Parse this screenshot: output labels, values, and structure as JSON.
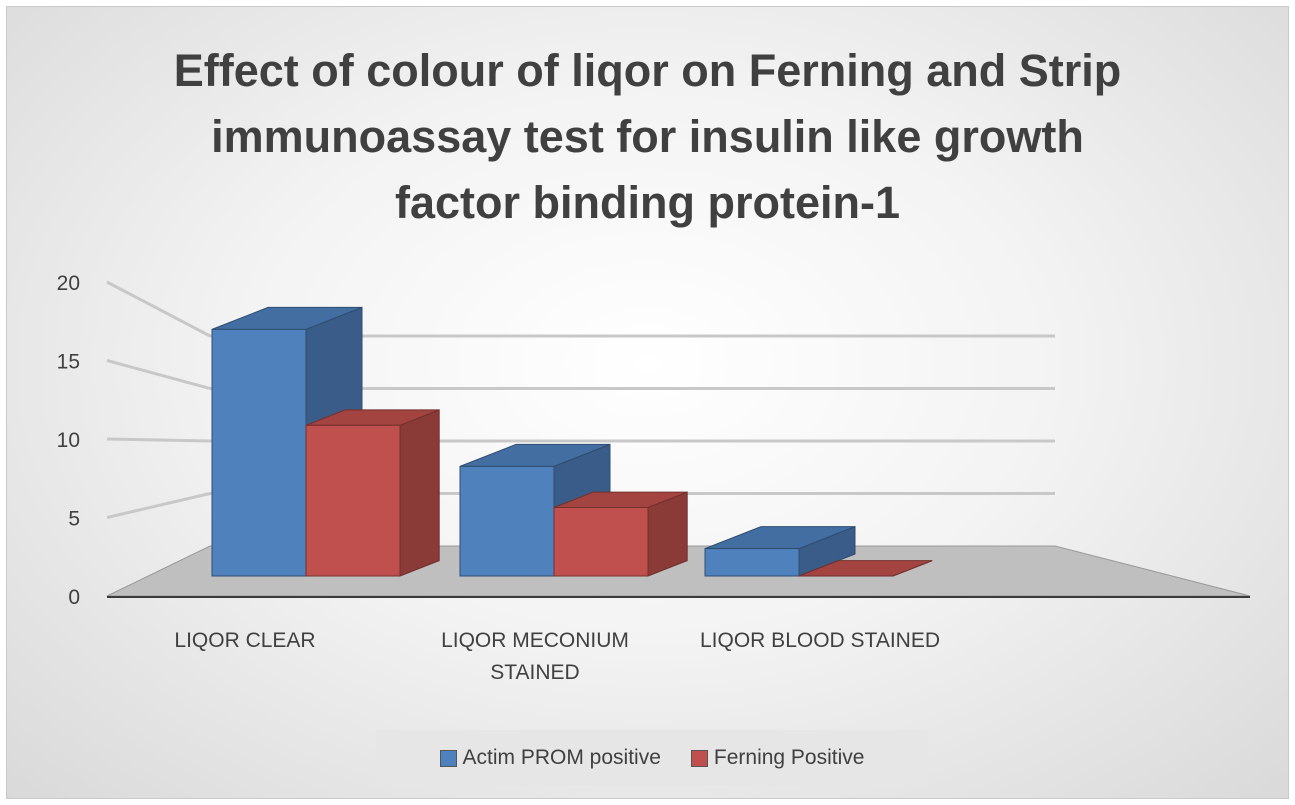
{
  "chart_data": {
    "type": "bar",
    "title_lines": [
      "Effect of colour of liqor on Ferning and Strip",
      "immunoassay test for insulin like growth",
      "factor binding protein-1"
    ],
    "categories": [
      "LIQOR CLEAR",
      "LIQOR MECONIUM STAINED",
      "LIQOR BLOOD STAINED"
    ],
    "category_lines": [
      [
        "LIQOR CLEAR"
      ],
      [
        "LIQOR MECONIUM",
        "STAINED"
      ],
      [
        "LIQOR BLOOD STAINED"
      ]
    ],
    "series": [
      {
        "name": "Actim PROM positive",
        "values": [
          18,
          8,
          2
        ],
        "color": "#4f81bd"
      },
      {
        "name": "Ferning Positive",
        "values": [
          11,
          5,
          0
        ],
        "color": "#c0504d"
      }
    ],
    "yticks": [
      "0",
      "5",
      "10",
      "15",
      "20"
    ],
    "ylim": [
      0,
      20
    ],
    "xlabel": "",
    "ylabel": "",
    "legend_position": "bottom",
    "grid": true
  }
}
